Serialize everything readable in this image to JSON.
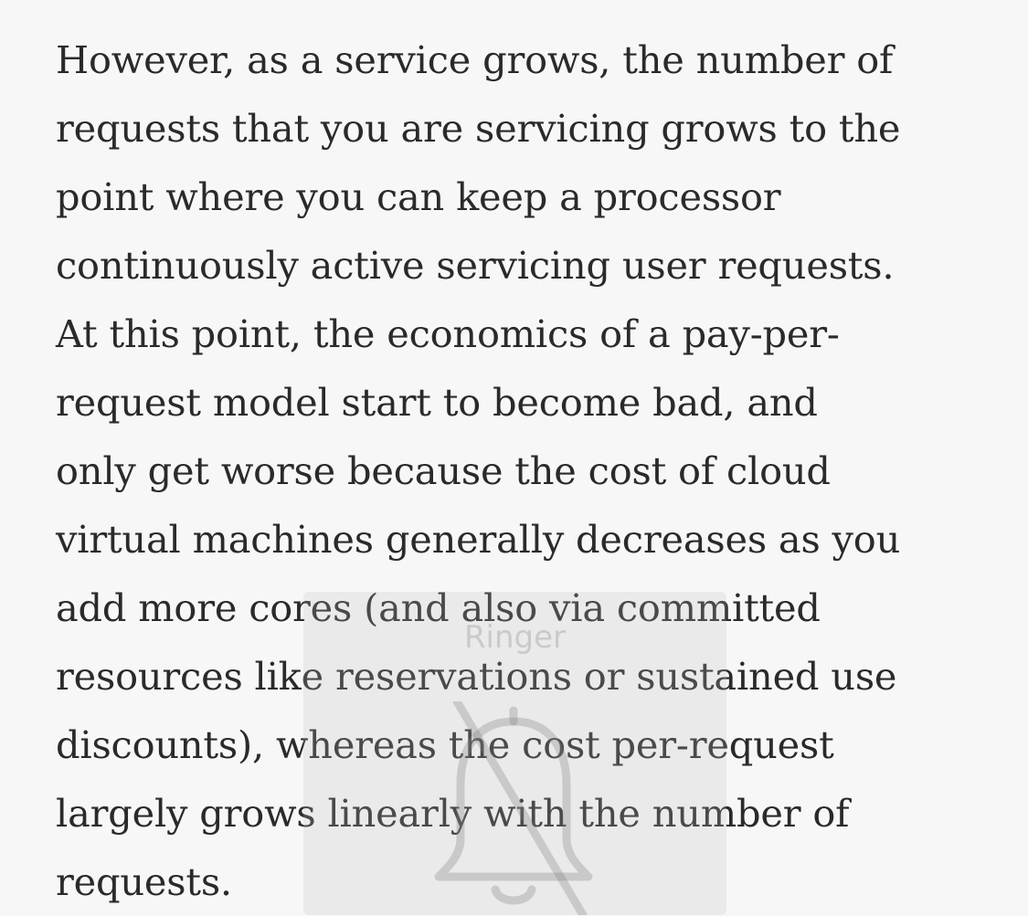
{
  "article": {
    "paragraph_lines": [
      "However, as a service grows, the number of",
      "requests that you are servicing grows to the",
      "point where you can keep a processor",
      "continuously active servicing user requests.",
      "At this point, the economics of a pay-per-",
      "request model start to become bad, and",
      "only get worse because the cost of cloud",
      "virtual machines generally decreases as you",
      "add more cores (and also via committed",
      "resources like reservations or sustained use",
      "discounts), whereas the cost per-request",
      "largely grows linearly with the number of",
      "requests."
    ]
  },
  "overlay": {
    "label": "Ringer",
    "icon": "bell-muted-icon"
  }
}
